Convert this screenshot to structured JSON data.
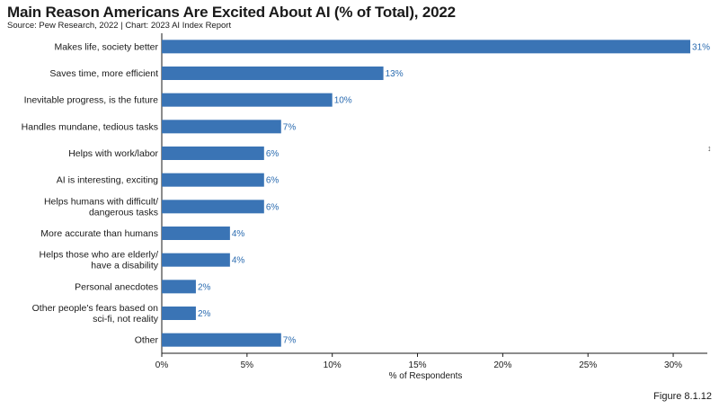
{
  "chart_data": {
    "type": "bar",
    "orientation": "horizontal",
    "title": "Main Reason Americans Are Excited About AI (% of Total), 2022",
    "subtitle": "Source: Pew Research, 2022 | Chart: 2023 AI Index Report",
    "xlabel": "% of Respondents",
    "ylabel": "",
    "xlim": [
      0,
      32
    ],
    "xticks": [
      0,
      5,
      10,
      15,
      20,
      25,
      30
    ],
    "xtick_labels": [
      "0%",
      "5%",
      "10%",
      "15%",
      "20%",
      "25%",
      "30%"
    ],
    "grid": false,
    "bar_color": "#3a74b5",
    "categories": [
      [
        "Makes life, society better"
      ],
      [
        "Saves time, more efficient"
      ],
      [
        "Inevitable progress, is the future"
      ],
      [
        "Handles mundane, tedious tasks"
      ],
      [
        "Helps with work/labor"
      ],
      [
        "AI is interesting, exciting"
      ],
      [
        "Helps humans with difficult/",
        "dangerous tasks"
      ],
      [
        "More accurate than humans"
      ],
      [
        "Helps those who are elderly/",
        "have a disability"
      ],
      [
        "Personal anecdotes"
      ],
      [
        "Other people's fears based on",
        "sci-fi, not reality"
      ],
      [
        "Other"
      ]
    ],
    "values": [
      31,
      13,
      10,
      7,
      6,
      6,
      6,
      4,
      4,
      2,
      2,
      7
    ],
    "value_labels": [
      "31%",
      "13%",
      "10%",
      "7%",
      "6%",
      "6%",
      "6%",
      "4%",
      "4%",
      "2%",
      "2%",
      "7%"
    ]
  },
  "figure_label": "Figure 8.1.12",
  "cursor_glyph": "↕"
}
